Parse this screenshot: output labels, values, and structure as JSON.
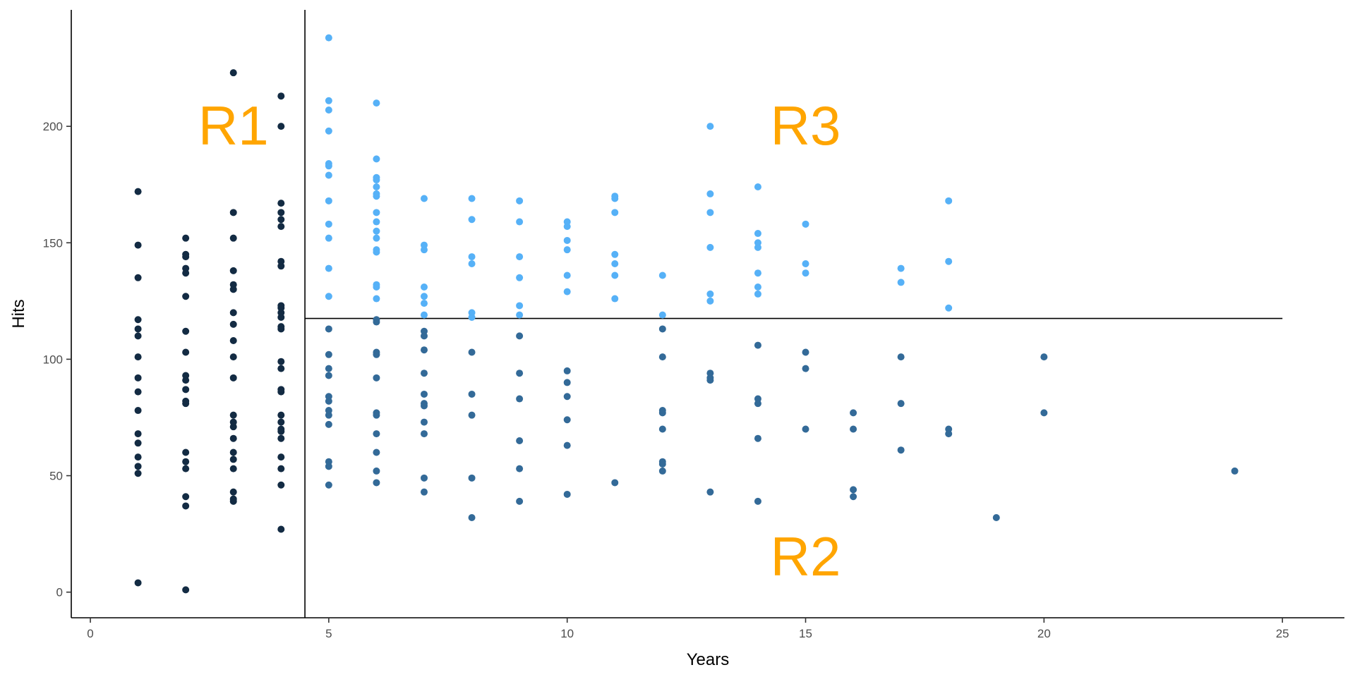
{
  "chart_data": {
    "type": "scatter",
    "xlabel": "Years",
    "ylabel": "Hits",
    "xlim": [
      -0.4,
      26.3
    ],
    "ylim": [
      -11,
      250
    ],
    "x_ticks": [
      "0",
      "5",
      "10",
      "15",
      "20",
      "25"
    ],
    "y_ticks": [
      "0",
      "50",
      "100",
      "150",
      "200"
    ],
    "grid": false,
    "colors": {
      "R1": "#132b43",
      "R2": "#336a98",
      "R3": "#56b1f7",
      "region_label": "#ffa500",
      "axis": "#000000"
    },
    "partition": {
      "years_split": 4.5,
      "hits_split": 117.5,
      "hits_split_xmax": 25
    },
    "regions": [
      {
        "label": "R1",
        "x": 3,
        "y": 200
      },
      {
        "label": "R3",
        "x": 15,
        "y": 200
      },
      {
        "label": "R2",
        "x": 15,
        "y": 15
      }
    ],
    "series": [
      {
        "region": "R1",
        "points": [
          [
            1,
            4
          ],
          [
            1,
            51
          ],
          [
            1,
            54
          ],
          [
            1,
            58
          ],
          [
            1,
            64
          ],
          [
            1,
            68
          ],
          [
            1,
            78
          ],
          [
            1,
            86
          ],
          [
            1,
            92
          ],
          [
            1,
            101
          ],
          [
            1,
            110
          ],
          [
            1,
            113
          ],
          [
            1,
            117
          ],
          [
            1,
            135
          ],
          [
            1,
            149
          ],
          [
            1,
            172
          ],
          [
            2,
            1
          ],
          [
            2,
            37
          ],
          [
            2,
            41
          ],
          [
            2,
            53
          ],
          [
            2,
            56
          ],
          [
            2,
            60
          ],
          [
            2,
            81
          ],
          [
            2,
            82
          ],
          [
            2,
            87
          ],
          [
            2,
            91
          ],
          [
            2,
            93
          ],
          [
            2,
            103
          ],
          [
            2,
            112
          ],
          [
            2,
            127
          ],
          [
            2,
            137
          ],
          [
            2,
            139
          ],
          [
            2,
            144
          ],
          [
            2,
            145
          ],
          [
            2,
            152
          ],
          [
            3,
            39
          ],
          [
            3,
            40
          ],
          [
            3,
            43
          ],
          [
            3,
            53
          ],
          [
            3,
            57
          ],
          [
            3,
            60
          ],
          [
            3,
            66
          ],
          [
            3,
            71
          ],
          [
            3,
            73
          ],
          [
            3,
            76
          ],
          [
            3,
            92
          ],
          [
            3,
            101
          ],
          [
            3,
            108
          ],
          [
            3,
            115
          ],
          [
            3,
            120
          ],
          [
            3,
            130
          ],
          [
            3,
            132
          ],
          [
            3,
            138
          ],
          [
            3,
            152
          ],
          [
            3,
            163
          ],
          [
            3,
            223
          ],
          [
            4,
            27
          ],
          [
            4,
            46
          ],
          [
            4,
            53
          ],
          [
            4,
            58
          ],
          [
            4,
            66
          ],
          [
            4,
            69
          ],
          [
            4,
            70
          ],
          [
            4,
            73
          ],
          [
            4,
            76
          ],
          [
            4,
            86
          ],
          [
            4,
            87
          ],
          [
            4,
            96
          ],
          [
            4,
            99
          ],
          [
            4,
            113
          ],
          [
            4,
            114
          ],
          [
            4,
            118
          ],
          [
            4,
            120
          ],
          [
            4,
            122
          ],
          [
            4,
            123
          ],
          [
            4,
            140
          ],
          [
            4,
            142
          ],
          [
            4,
            157
          ],
          [
            4,
            160
          ],
          [
            4,
            163
          ],
          [
            4,
            167
          ],
          [
            4,
            200
          ],
          [
            4,
            213
          ]
        ]
      },
      {
        "region": "R2",
        "points": [
          [
            5,
            46
          ],
          [
            5,
            54
          ],
          [
            5,
            56
          ],
          [
            5,
            72
          ],
          [
            5,
            76
          ],
          [
            5,
            78
          ],
          [
            5,
            82
          ],
          [
            5,
            84
          ],
          [
            5,
            93
          ],
          [
            5,
            96
          ],
          [
            5,
            102
          ],
          [
            5,
            113
          ],
          [
            6,
            47
          ],
          [
            6,
            52
          ],
          [
            6,
            60
          ],
          [
            6,
            68
          ],
          [
            6,
            76
          ],
          [
            6,
            77
          ],
          [
            6,
            92
          ],
          [
            6,
            102
          ],
          [
            6,
            103
          ],
          [
            6,
            116
          ],
          [
            6,
            117
          ],
          [
            7,
            43
          ],
          [
            7,
            49
          ],
          [
            7,
            68
          ],
          [
            7,
            73
          ],
          [
            7,
            80
          ],
          [
            7,
            81
          ],
          [
            7,
            85
          ],
          [
            7,
            94
          ],
          [
            7,
            104
          ],
          [
            7,
            110
          ],
          [
            7,
            112
          ],
          [
            8,
            32
          ],
          [
            8,
            49
          ],
          [
            8,
            76
          ],
          [
            8,
            85
          ],
          [
            8,
            103
          ],
          [
            9,
            39
          ],
          [
            9,
            53
          ],
          [
            9,
            65
          ],
          [
            9,
            83
          ],
          [
            9,
            94
          ],
          [
            9,
            110
          ],
          [
            10,
            42
          ],
          [
            10,
            63
          ],
          [
            10,
            74
          ],
          [
            10,
            84
          ],
          [
            10,
            90
          ],
          [
            10,
            95
          ],
          [
            11,
            47
          ],
          [
            12,
            52
          ],
          [
            12,
            55
          ],
          [
            12,
            56
          ],
          [
            12,
            70
          ],
          [
            12,
            77
          ],
          [
            12,
            78
          ],
          [
            12,
            101
          ],
          [
            12,
            113
          ],
          [
            13,
            43
          ],
          [
            13,
            91
          ],
          [
            13,
            92
          ],
          [
            13,
            94
          ],
          [
            14,
            39
          ],
          [
            14,
            66
          ],
          [
            14,
            81
          ],
          [
            14,
            83
          ],
          [
            14,
            106
          ],
          [
            15,
            70
          ],
          [
            15,
            96
          ],
          [
            15,
            103
          ],
          [
            16,
            41
          ],
          [
            16,
            44
          ],
          [
            16,
            70
          ],
          [
            16,
            77
          ],
          [
            17,
            61
          ],
          [
            17,
            81
          ],
          [
            17,
            101
          ],
          [
            18,
            68
          ],
          [
            18,
            70
          ],
          [
            19,
            32
          ],
          [
            20,
            77
          ],
          [
            20,
            101
          ],
          [
            24,
            52
          ]
        ]
      },
      {
        "region": "R3",
        "points": [
          [
            5,
            127
          ],
          [
            5,
            139
          ],
          [
            5,
            152
          ],
          [
            5,
            158
          ],
          [
            5,
            168
          ],
          [
            5,
            179
          ],
          [
            5,
            183
          ],
          [
            5,
            184
          ],
          [
            5,
            198
          ],
          [
            5,
            207
          ],
          [
            5,
            211
          ],
          [
            5,
            238
          ],
          [
            6,
            126
          ],
          [
            6,
            131
          ],
          [
            6,
            132
          ],
          [
            6,
            146
          ],
          [
            6,
            147
          ],
          [
            6,
            152
          ],
          [
            6,
            155
          ],
          [
            6,
            159
          ],
          [
            6,
            163
          ],
          [
            6,
            170
          ],
          [
            6,
            171
          ],
          [
            6,
            174
          ],
          [
            6,
            177
          ],
          [
            6,
            178
          ],
          [
            6,
            186
          ],
          [
            6,
            210
          ],
          [
            7,
            119
          ],
          [
            7,
            124
          ],
          [
            7,
            127
          ],
          [
            7,
            131
          ],
          [
            7,
            147
          ],
          [
            7,
            149
          ],
          [
            7,
            169
          ],
          [
            8,
            118
          ],
          [
            8,
            120
          ],
          [
            8,
            141
          ],
          [
            8,
            144
          ],
          [
            8,
            160
          ],
          [
            8,
            169
          ],
          [
            9,
            119
          ],
          [
            9,
            123
          ],
          [
            9,
            135
          ],
          [
            9,
            144
          ],
          [
            9,
            159
          ],
          [
            9,
            168
          ],
          [
            10,
            129
          ],
          [
            10,
            136
          ],
          [
            10,
            147
          ],
          [
            10,
            151
          ],
          [
            10,
            157
          ],
          [
            10,
            159
          ],
          [
            11,
            126
          ],
          [
            11,
            136
          ],
          [
            11,
            141
          ],
          [
            11,
            145
          ],
          [
            11,
            163
          ],
          [
            11,
            169
          ],
          [
            11,
            170
          ],
          [
            12,
            119
          ],
          [
            12,
            136
          ],
          [
            13,
            125
          ],
          [
            13,
            128
          ],
          [
            13,
            148
          ],
          [
            13,
            163
          ],
          [
            13,
            171
          ],
          [
            13,
            200
          ],
          [
            14,
            128
          ],
          [
            14,
            131
          ],
          [
            14,
            137
          ],
          [
            14,
            148
          ],
          [
            14,
            150
          ],
          [
            14,
            154
          ],
          [
            14,
            174
          ],
          [
            15,
            137
          ],
          [
            15,
            141
          ],
          [
            15,
            158
          ],
          [
            17,
            133
          ],
          [
            17,
            139
          ],
          [
            18,
            122
          ],
          [
            18,
            142
          ],
          [
            18,
            168
          ]
        ]
      }
    ]
  }
}
